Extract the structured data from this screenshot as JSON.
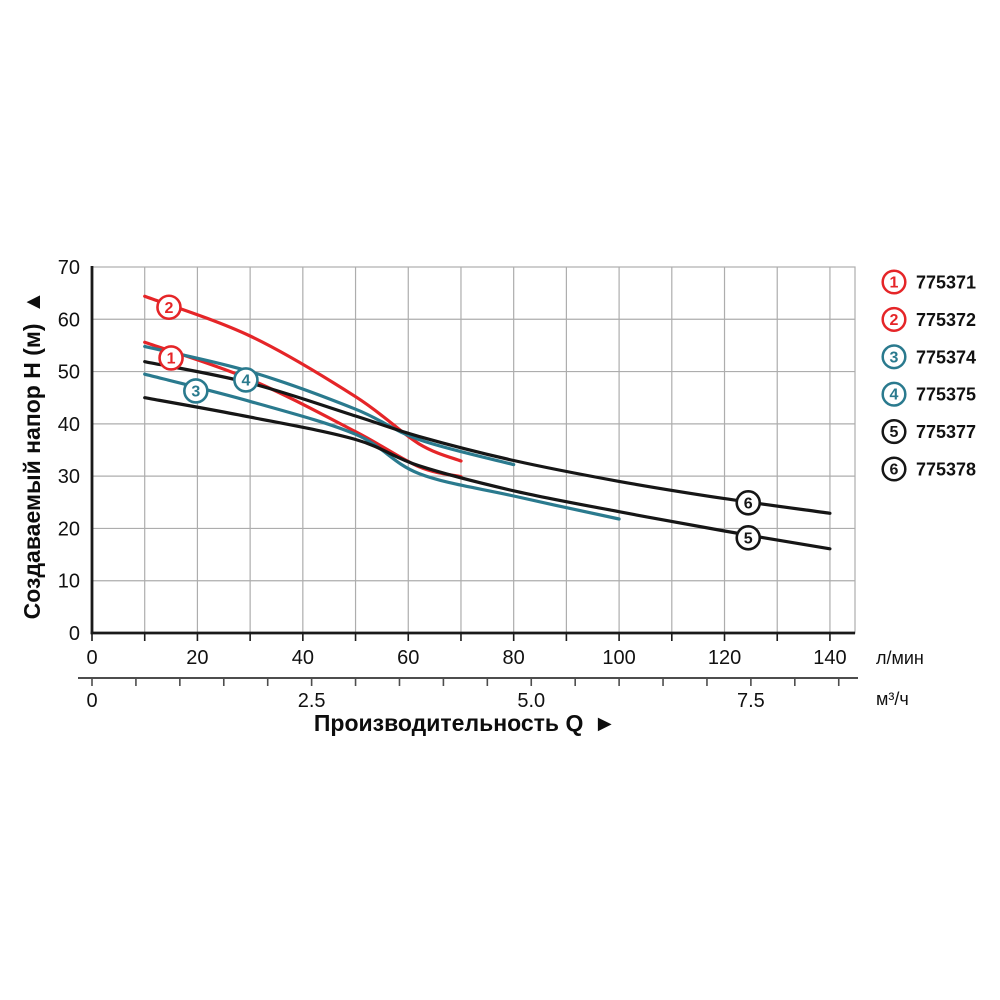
{
  "page": {
    "background": "#ffffff"
  },
  "chart_data": {
    "type": "line",
    "y_axis": {
      "title": "Создаваемый напор Н (м)",
      "arrow": "▲",
      "ticks": [
        "0",
        "10",
        "20",
        "30",
        "40",
        "50",
        "60",
        "70"
      ],
      "tick_values": [
        0,
        10,
        20,
        30,
        40,
        50,
        60,
        70
      ],
      "range": [
        0,
        70
      ]
    },
    "x_axis": {
      "title": "Производительность Q",
      "arrow": "►",
      "primary": {
        "unit": "л/мин",
        "tick_labels": [
          "0",
          "20",
          "40",
          "60",
          "80",
          "100",
          "120",
          "140"
        ],
        "tick_values": [
          0,
          20,
          40,
          60,
          80,
          100,
          120,
          140
        ],
        "minor_step": 10,
        "range": [
          0,
          145
        ]
      },
      "secondary": {
        "unit": "м³/ч",
        "tick_labels": [
          "0",
          "2.5",
          "5.0",
          "7.5"
        ],
        "tick_values": [
          0,
          2.5,
          5.0,
          7.5
        ],
        "minor_step": 0.5,
        "range": [
          0,
          8.5
        ],
        "liters_per_unit": 16.667
      }
    },
    "grid": {
      "step_x": 10,
      "step_y": 10,
      "on": true
    },
    "colors": {
      "red": "#e52528",
      "teal": "#2a7a8e",
      "black": "#161616",
      "grid": "#adadad",
      "axis": "#1a1a1a",
      "axis2": "#4d4d4d"
    },
    "series": [
      {
        "num": "1",
        "article": "775371",
        "color_key": "red",
        "points": [
          [
            10,
            55.6
          ],
          [
            30,
            48.5
          ],
          [
            50,
            38.5
          ],
          [
            62,
            31.8
          ],
          [
            70,
            29.9
          ]
        ],
        "marker_at": [
          15.0,
          52.6
        ]
      },
      {
        "num": "2",
        "article": "775372",
        "color_key": "red",
        "points": [
          [
            10,
            64.4
          ],
          [
            30,
            56.8
          ],
          [
            50,
            45.2
          ],
          [
            62,
            36.2
          ],
          [
            70,
            32.9
          ]
        ],
        "marker_at": [
          14.6,
          62.3
        ]
      },
      {
        "num": "3",
        "article": "775374",
        "color_key": "teal",
        "points": [
          [
            10,
            49.5
          ],
          [
            30,
            44.3
          ],
          [
            50,
            38.0
          ],
          [
            62,
            30.5
          ],
          [
            80,
            26.2
          ],
          [
            100,
            21.8
          ]
        ],
        "marker_at": [
          19.7,
          46.3
        ]
      },
      {
        "num": "4",
        "article": "775375",
        "color_key": "teal",
        "points": [
          [
            10,
            54.8
          ],
          [
            30,
            50.0
          ],
          [
            50,
            42.8
          ],
          [
            62,
            37.0
          ],
          [
            80,
            32.2
          ]
        ],
        "marker_at": [
          29.2,
          48.4
        ]
      },
      {
        "num": "5",
        "article": "775377",
        "color_key": "black",
        "points": [
          [
            10,
            45.0
          ],
          [
            30,
            41.3
          ],
          [
            50,
            37.0
          ],
          [
            62,
            32.0
          ],
          [
            80,
            27.2
          ],
          [
            100,
            23.2
          ],
          [
            120,
            19.5
          ],
          [
            140,
            16.1
          ]
        ],
        "marker_at": [
          124.5,
          18.2
        ]
      },
      {
        "num": "6",
        "article": "775378",
        "color_key": "black",
        "points": [
          [
            10,
            51.9
          ],
          [
            30,
            47.8
          ],
          [
            50,
            41.5
          ],
          [
            62,
            37.6
          ],
          [
            80,
            33.0
          ],
          [
            100,
            29.0
          ],
          [
            120,
            25.7
          ],
          [
            140,
            22.9
          ]
        ],
        "marker_at": [
          124.5,
          24.9
        ]
      }
    ],
    "legend": {
      "position": "right-top",
      "items": [
        {
          "num": "1",
          "article": "775371",
          "color_key": "red"
        },
        {
          "num": "2",
          "article": "775372",
          "color_key": "red"
        },
        {
          "num": "3",
          "article": "775374",
          "color_key": "teal"
        },
        {
          "num": "4",
          "article": "775375",
          "color_key": "teal"
        },
        {
          "num": "5",
          "article": "775377",
          "color_key": "black"
        },
        {
          "num": "6",
          "article": "775378",
          "color_key": "black"
        }
      ]
    }
  }
}
